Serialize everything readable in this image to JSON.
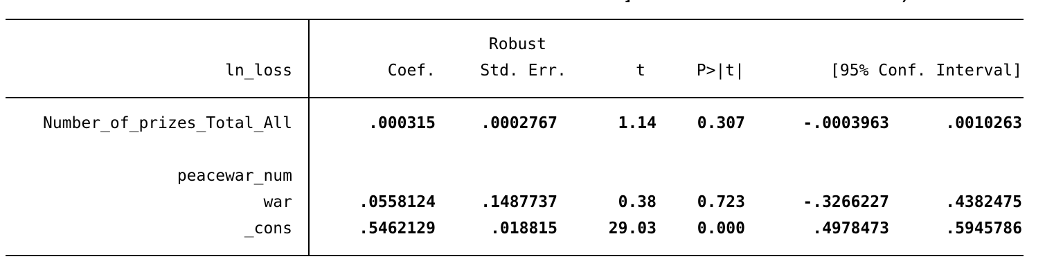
{
  "table": {
    "header": {
      "dep_var": "ln_loss",
      "robust_label": "Robust",
      "col_coef": "Coef.",
      "col_se": "Std. Err.",
      "col_t": "t",
      "col_p": "P>|t|",
      "col_ci": "[95% Conf. Interval]"
    },
    "rows": [
      {
        "label": "Number_of_prizes_Total_All",
        "coef": ".000315",
        "se": ".0002767",
        "t": "1.14",
        "p": "0.307",
        "ci_low": "-.0003963",
        "ci_high": ".0010263"
      },
      {
        "group_label": "peacewar_num"
      },
      {
        "label": "war",
        "coef": ".0558124",
        "se": ".1487737",
        "t": "0.38",
        "p": "0.723",
        "ci_low": "-.3266227",
        "ci_high": ".4382475"
      },
      {
        "label": "_cons",
        "coef": ".5462129",
        "se": ".018815",
        "t": "29.03",
        "p": "0.000",
        "ci_low": ".4978473",
        "ci_high": ".5945786"
      }
    ]
  }
}
